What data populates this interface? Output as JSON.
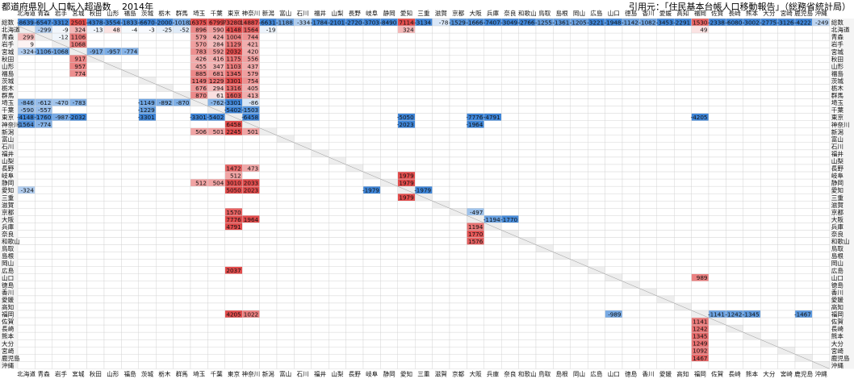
{
  "header": {
    "title": "都道府県別 人口転入超過数",
    "year": "2014年",
    "source": "引用元：「住民基本台帳人口移動報告」（総務省統計局）"
  },
  "chart_data": {
    "type": "heatmap",
    "total_label": "総数",
    "columns": [
      "北海道",
      "青森",
      "岩手",
      "宮城",
      "秋田",
      "山形",
      "福島",
      "茨城",
      "栃木",
      "群馬",
      "埼玉",
      "千葉",
      "東京",
      "神奈川",
      "新潟",
      "富山",
      "石川",
      "福井",
      "山梨",
      "長野",
      "岐阜",
      "静岡",
      "愛知",
      "三重",
      "滋賀",
      "京都",
      "大阪",
      "兵庫",
      "奈良",
      "和歌山",
      "鳥取",
      "島根",
      "岡山",
      "広島",
      "山口",
      "徳島",
      "香川",
      "愛媛",
      "高知",
      "福岡",
      "佐賀",
      "長崎",
      "熊本",
      "大分",
      "宮崎",
      "鹿児島",
      "沖縄"
    ],
    "rows": [
      "総数",
      "北海道",
      "青森",
      "岩手",
      "宮城",
      "秋田",
      "山形",
      "福島",
      "茨城",
      "栃木",
      "群馬",
      "埼玉",
      "千葉",
      "東京",
      "神奈川",
      "新潟",
      "富山",
      "石川",
      "福井",
      "山梨",
      "長野",
      "岐阜",
      "静岡",
      "愛知",
      "三重",
      "滋賀",
      "京都",
      "大阪",
      "兵庫",
      "奈良",
      "和歌山",
      "鳥取",
      "島根",
      "岡山",
      "広島",
      "山口",
      "徳島",
      "香川",
      "愛媛",
      "高知",
      "福岡",
      "佐賀",
      "長崎",
      "熊本",
      "大分",
      "宮崎",
      "鹿児島",
      "沖縄"
    ],
    "total_row": [
      -8639,
      -6547,
      -3312,
      2501,
      -4378,
      -3554,
      -1833,
      -6670,
      -2000,
      -1018,
      16375,
      6799,
      73280,
      14887,
      -6631,
      -1188,
      -334,
      -1784,
      -2101,
      -2720,
      -3703,
      -8490,
      7114,
      -3134,
      -78,
      -1529,
      -1666,
      -7407,
      -3049,
      -2766,
      -1255,
      -1361,
      -1205,
      -3221,
      -1948,
      -1142,
      -1082,
      -3453,
      -2291,
      1530,
      -2338,
      -6080,
      -3002,
      -2775,
      -3126,
      -4222,
      -249
    ],
    "row_totals": [
      -8639,
      -8639,
      -6547,
      -3312,
      2501,
      -4378,
      -3554,
      -1833,
      -6670,
      -2000,
      -1018,
      16375,
      6799,
      73280,
      14887,
      -6631,
      -1188,
      -334,
      -1784,
      -2101,
      -2720,
      -3703,
      -8490,
      7114,
      -3134,
      -78,
      -1529,
      -1666,
      -7407,
      -3049,
      -2766,
      -1255,
      -1361,
      -1205,
      -3221,
      -1948,
      -1142,
      -1082,
      -3453,
      -2291,
      1530,
      -2338,
      -6080,
      -3002,
      -2775,
      -3126,
      -4222,
      -249
    ],
    "pairs": [
      {
        "row": "北海道",
        "col": "青森",
        "value": -299
      },
      {
        "row": "北海道",
        "col": "岩手",
        "value": -9
      },
      {
        "row": "北海道",
        "col": "宮城",
        "value": 324
      },
      {
        "row": "北海道",
        "col": "秋田",
        "value": -13
      },
      {
        "row": "北海道",
        "col": "山形",
        "value": 48
      },
      {
        "row": "北海道",
        "col": "福島",
        "value": -4
      },
      {
        "row": "北海道",
        "col": "茨城",
        "value": -3
      },
      {
        "row": "北海道",
        "col": "栃木",
        "value": -25
      },
      {
        "row": "北海道",
        "col": "群馬",
        "value": -52
      },
      {
        "row": "北海道",
        "col": "埼玉",
        "value": 896
      },
      {
        "row": "北海道",
        "col": "千葉",
        "value": 590
      },
      {
        "row": "北海道",
        "col": "東京",
        "value": 4148
      },
      {
        "row": "北海道",
        "col": "神奈川",
        "value": 1564
      },
      {
        "row": "北海道",
        "col": "新潟",
        "value": -19
      },
      {
        "row": "北海道",
        "col": "愛知",
        "value": 324
      },
      {
        "row": "北海道",
        "col": "福岡",
        "value": 49
      },
      {
        "row": "青森",
        "col": "北海道",
        "value": 299
      },
      {
        "row": "青森",
        "col": "岩手",
        "value": -12
      },
      {
        "row": "青森",
        "col": "宮城",
        "value": 1106
      },
      {
        "row": "青森",
        "col": "埼玉",
        "value": 579
      },
      {
        "row": "青森",
        "col": "千葉",
        "value": 424
      },
      {
        "row": "青森",
        "col": "東京",
        "value": 1004
      },
      {
        "row": "青森",
        "col": "神奈川",
        "value": 744
      },
      {
        "row": "岩手",
        "col": "北海道",
        "value": 9
      },
      {
        "row": "岩手",
        "col": "宮城",
        "value": 1068
      },
      {
        "row": "岩手",
        "col": "埼玉",
        "value": 570
      },
      {
        "row": "岩手",
        "col": "千葉",
        "value": 284
      },
      {
        "row": "岩手",
        "col": "東京",
        "value": 1129
      },
      {
        "row": "岩手",
        "col": "神奈川",
        "value": 421
      },
      {
        "row": "宮城",
        "col": "北海道",
        "value": -324
      },
      {
        "row": "宮城",
        "col": "青森",
        "value": -1106
      },
      {
        "row": "宮城",
        "col": "岩手",
        "value": -1068
      },
      {
        "row": "宮城",
        "col": "秋田",
        "value": -917
      },
      {
        "row": "宮城",
        "col": "山形",
        "value": -957
      },
      {
        "row": "宮城",
        "col": "福島",
        "value": -774
      },
      {
        "row": "宮城",
        "col": "埼玉",
        "value": 783
      },
      {
        "row": "宮城",
        "col": "千葉",
        "value": 592
      },
      {
        "row": "宮城",
        "col": "東京",
        "value": 2032
      },
      {
        "row": "宮城",
        "col": "神奈川",
        "value": 420
      },
      {
        "row": "秋田",
        "col": "宮城",
        "value": 917
      },
      {
        "row": "秋田",
        "col": "埼玉",
        "value": 426
      },
      {
        "row": "秋田",
        "col": "千葉",
        "value": 416
      },
      {
        "row": "秋田",
        "col": "東京",
        "value": 1175
      },
      {
        "row": "秋田",
        "col": "神奈川",
        "value": 556
      },
      {
        "row": "山形",
        "col": "宮城",
        "value": 957
      },
      {
        "row": "山形",
        "col": "埼玉",
        "value": 455
      },
      {
        "row": "山形",
        "col": "千葉",
        "value": 347
      },
      {
        "row": "山形",
        "col": "東京",
        "value": 1103
      },
      {
        "row": "山形",
        "col": "神奈川",
        "value": 437
      },
      {
        "row": "福島",
        "col": "宮城",
        "value": 774
      },
      {
        "row": "福島",
        "col": "埼玉",
        "value": 885
      },
      {
        "row": "福島",
        "col": "千葉",
        "value": 681
      },
      {
        "row": "福島",
        "col": "東京",
        "value": 1345
      },
      {
        "row": "福島",
        "col": "神奈川",
        "value": 579
      },
      {
        "row": "茨城",
        "col": "埼玉",
        "value": 1149
      },
      {
        "row": "茨城",
        "col": "千葉",
        "value": 1229
      },
      {
        "row": "茨城",
        "col": "東京",
        "value": 3301
      },
      {
        "row": "茨城",
        "col": "神奈川",
        "value": 754
      },
      {
        "row": "栃木",
        "col": "埼玉",
        "value": 676
      },
      {
        "row": "栃木",
        "col": "千葉",
        "value": 294
      },
      {
        "row": "栃木",
        "col": "東京",
        "value": 1316
      },
      {
        "row": "栃木",
        "col": "神奈川",
        "value": 405
      },
      {
        "row": "群馬",
        "col": "埼玉",
        "value": 870
      },
      {
        "row": "群馬",
        "col": "千葉",
        "value": 61
      },
      {
        "row": "群馬",
        "col": "東京",
        "value": 1603
      },
      {
        "row": "群馬",
        "col": "神奈川",
        "value": 413
      },
      {
        "row": "埼玉",
        "col": "北海道",
        "value": -846
      },
      {
        "row": "埼玉",
        "col": "青森",
        "value": -612
      },
      {
        "row": "埼玉",
        "col": "岩手",
        "value": -470
      },
      {
        "row": "埼玉",
        "col": "宮城",
        "value": -783
      },
      {
        "row": "埼玉",
        "col": "茨城",
        "value": -1149
      },
      {
        "row": "埼玉",
        "col": "栃木",
        "value": -892
      },
      {
        "row": "埼玉",
        "col": "群馬",
        "value": -870
      },
      {
        "row": "埼玉",
        "col": "千葉",
        "value": -762
      },
      {
        "row": "埼玉",
        "col": "東京",
        "value": -3301
      },
      {
        "row": "埼玉",
        "col": "神奈川",
        "value": -86
      },
      {
        "row": "千葉",
        "col": "北海道",
        "value": -590
      },
      {
        "row": "千葉",
        "col": "青森",
        "value": -557
      },
      {
        "row": "千葉",
        "col": "茨城",
        "value": -1229
      },
      {
        "row": "千葉",
        "col": "東京",
        "value": -5402
      },
      {
        "row": "千葉",
        "col": "神奈川",
        "value": -1503
      },
      {
        "row": "東京",
        "col": "北海道",
        "value": -4148
      },
      {
        "row": "東京",
        "col": "青森",
        "value": -1760
      },
      {
        "row": "東京",
        "col": "岩手",
        "value": -987
      },
      {
        "row": "東京",
        "col": "宮城",
        "value": -2032
      },
      {
        "row": "東京",
        "col": "茨城",
        "value": -3301
      },
      {
        "row": "東京",
        "col": "埼玉",
        "value": -3301
      },
      {
        "row": "東京",
        "col": "千葉",
        "value": -5402
      },
      {
        "row": "東京",
        "col": "神奈川",
        "value": -6458
      },
      {
        "row": "東京",
        "col": "愛知",
        "value": -5050
      },
      {
        "row": "東京",
        "col": "大阪",
        "value": -7776
      },
      {
        "row": "東京",
        "col": "兵庫",
        "value": -4791
      },
      {
        "row": "東京",
        "col": "福岡",
        "value": -4205
      },
      {
        "row": "神奈川",
        "col": "北海道",
        "value": -1564
      },
      {
        "row": "神奈川",
        "col": "青森",
        "value": -774
      },
      {
        "row": "神奈川",
        "col": "東京",
        "value": 6458
      },
      {
        "row": "神奈川",
        "col": "愛知",
        "value": -2023
      },
      {
        "row": "神奈川",
        "col": "大阪",
        "value": -1964
      },
      {
        "row": "新潟",
        "col": "埼玉",
        "value": 506
      },
      {
        "row": "新潟",
        "col": "千葉",
        "value": 501
      },
      {
        "row": "新潟",
        "col": "東京",
        "value": 2245
      },
      {
        "row": "新潟",
        "col": "神奈川",
        "value": 501
      },
      {
        "row": "長野",
        "col": "東京",
        "value": 1472
      },
      {
        "row": "長野",
        "col": "神奈川",
        "value": 473
      },
      {
        "row": "岐阜",
        "col": "東京",
        "value": 512
      },
      {
        "row": "岐阜",
        "col": "愛知",
        "value": 1979
      },
      {
        "row": "静岡",
        "col": "埼玉",
        "value": 512
      },
      {
        "row": "静岡",
        "col": "千葉",
        "value": 504
      },
      {
        "row": "静岡",
        "col": "東京",
        "value": 3010
      },
      {
        "row": "静岡",
        "col": "神奈川",
        "value": 2033
      },
      {
        "row": "静岡",
        "col": "愛知",
        "value": 1979
      },
      {
        "row": "愛知",
        "col": "北海道",
        "value": -324
      },
      {
        "row": "愛知",
        "col": "東京",
        "value": 5050
      },
      {
        "row": "愛知",
        "col": "神奈川",
        "value": 2023
      },
      {
        "row": "愛知",
        "col": "岐阜",
        "value": -1979
      },
      {
        "row": "愛知",
        "col": "三重",
        "value": -1979
      },
      {
        "row": "三重",
        "col": "愛知",
        "value": 1979
      },
      {
        "row": "京都",
        "col": "東京",
        "value": 1570
      },
      {
        "row": "京都",
        "col": "大阪",
        "value": -497
      },
      {
        "row": "大阪",
        "col": "東京",
        "value": 7776
      },
      {
        "row": "大阪",
        "col": "神奈川",
        "value": 1964
      },
      {
        "row": "大阪",
        "col": "兵庫",
        "value": -1194
      },
      {
        "row": "大阪",
        "col": "奈良",
        "value": -1770
      },
      {
        "row": "兵庫",
        "col": "東京",
        "value": 4791
      },
      {
        "row": "兵庫",
        "col": "大阪",
        "value": 1194
      },
      {
        "row": "奈良",
        "col": "大阪",
        "value": 1770
      },
      {
        "row": "和歌山",
        "col": "大阪",
        "value": 1576
      },
      {
        "row": "広島",
        "col": "東京",
        "value": 2037
      },
      {
        "row": "山口",
        "col": "福岡",
        "value": 989
      },
      {
        "row": "福岡",
        "col": "東京",
        "value": 4205
      },
      {
        "row": "福岡",
        "col": "神奈川",
        "value": 1022
      },
      {
        "row": "福岡",
        "col": "山口",
        "value": -989
      },
      {
        "row": "福岡",
        "col": "佐賀",
        "value": -1141
      },
      {
        "row": "福岡",
        "col": "長崎",
        "value": -1242
      },
      {
        "row": "福岡",
        "col": "熊本",
        "value": -1345
      },
      {
        "row": "福岡",
        "col": "鹿児島",
        "value": -1467
      },
      {
        "row": "佐賀",
        "col": "福岡",
        "value": 1141
      },
      {
        "row": "長崎",
        "col": "福岡",
        "value": 1242
      },
      {
        "row": "熊本",
        "col": "福岡",
        "value": 1345
      },
      {
        "row": "大分",
        "col": "福岡",
        "value": 1249
      },
      {
        "row": "宮崎",
        "col": "福岡",
        "value": 1092
      },
      {
        "row": "鹿児島",
        "col": "福岡",
        "value": 1467
      }
    ],
    "colors": {
      "positive": "#e03c3c",
      "negative": "#2e7cd6",
      "neutral": "#ffffff",
      "grid": "#d0d0d0",
      "label_bg": "#f4f4f4"
    },
    "scale_max": 2000
  }
}
